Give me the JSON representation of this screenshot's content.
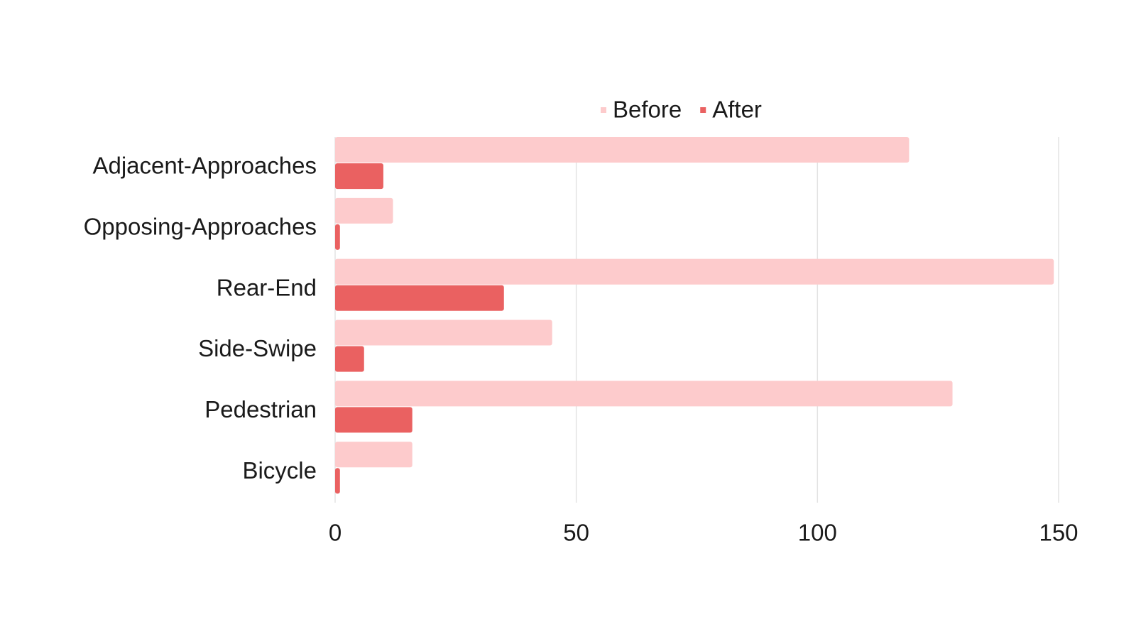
{
  "chart_data": {
    "type": "bar",
    "orientation": "horizontal",
    "categories": [
      "Adjacent-Approaches",
      "Opposing-Approaches",
      "Rear-End",
      "Side-Swipe",
      "Pedestrian",
      "Bicycle"
    ],
    "series": [
      {
        "name": "Before",
        "color": "#fdcbcc",
        "values": [
          119,
          12,
          149,
          45,
          128,
          16
        ]
      },
      {
        "name": "After",
        "color": "#ea6161",
        "values": [
          10,
          1,
          35,
          6,
          16,
          1
        ]
      }
    ],
    "xlim": [
      0,
      150
    ],
    "xticks": [
      0,
      50,
      100,
      150
    ],
    "grid": true,
    "legend": "top"
  }
}
